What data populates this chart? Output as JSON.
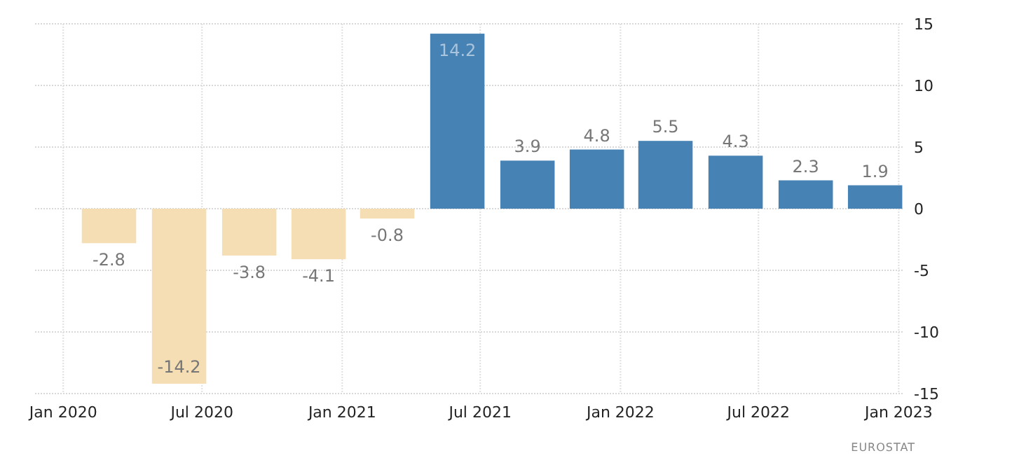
{
  "chart_data": {
    "type": "bar",
    "x": [
      "2020-03-01",
      "2020-06-01",
      "2020-09-01",
      "2020-12-01",
      "2021-03-01",
      "2021-06-01",
      "2021-09-01",
      "2021-12-01",
      "2022-03-01",
      "2022-06-01",
      "2022-09-01",
      "2022-12-01"
    ],
    "values": [
      -2.8,
      -14.2,
      -3.8,
      -4.1,
      -0.8,
      14.2,
      3.9,
      4.8,
      5.5,
      4.3,
      2.3,
      1.9
    ],
    "colors": [
      "#f5deb3",
      "#f5deb3",
      "#f5deb3",
      "#f5deb3",
      "#f5deb3",
      "#4682b4",
      "#4682b4",
      "#4682b4",
      "#4682b4",
      "#4682b4",
      "#4682b4",
      "#4682b4"
    ],
    "data_labels": true,
    "xlim": [
      "2019-11-25",
      "2023-01-08"
    ],
    "xticks": [
      {
        "value": "2020-01",
        "label": "Jan 2020"
      },
      {
        "value": "2020-07",
        "label": "Jul 2020"
      },
      {
        "value": "2021-01",
        "label": "Jan 2021"
      },
      {
        "value": "2021-07",
        "label": "Jul 2021"
      },
      {
        "value": "2022-01",
        "label": "Jan 2022"
      },
      {
        "value": "2022-07",
        "label": "Jul 2022"
      },
      {
        "value": "2023-01",
        "label": "Jan 2023"
      }
    ],
    "ylim": [
      -15,
      15
    ],
    "yticks": [
      15,
      10,
      5,
      0,
      -5,
      -10,
      -15
    ],
    "grid": true,
    "annotations": [
      "EUROSTAT"
    ]
  }
}
